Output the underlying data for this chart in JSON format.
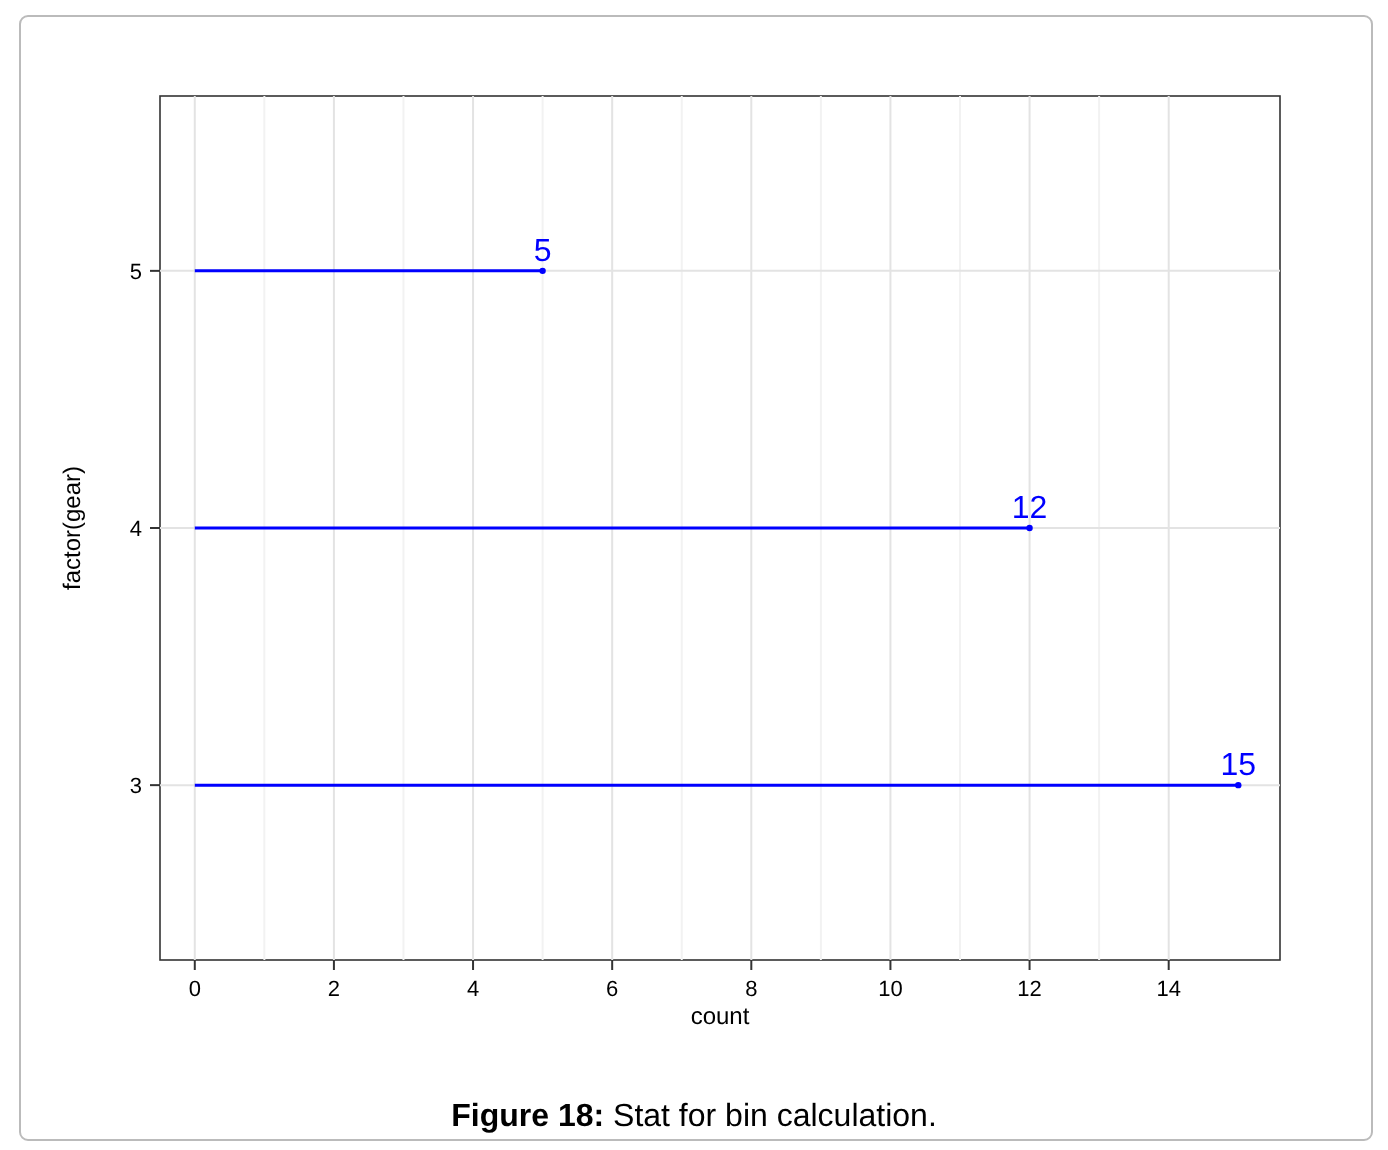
{
  "chart_data": {
    "type": "lollipop",
    "orientation": "horizontal",
    "xlabel": "count",
    "ylabel": "factor(gear)",
    "categories": [
      "5",
      "4",
      "3"
    ],
    "series": [
      {
        "color": "#0000ff",
        "values": [
          5,
          12,
          15
        ]
      }
    ],
    "xlim": [
      -0.5,
      15.6
    ],
    "xticks": [
      0,
      2,
      4,
      6,
      8,
      10,
      12,
      14
    ],
    "grid": true,
    "data_labels": true,
    "annotations": [
      "Figure 18: Stat for bin calculation."
    ]
  }
}
